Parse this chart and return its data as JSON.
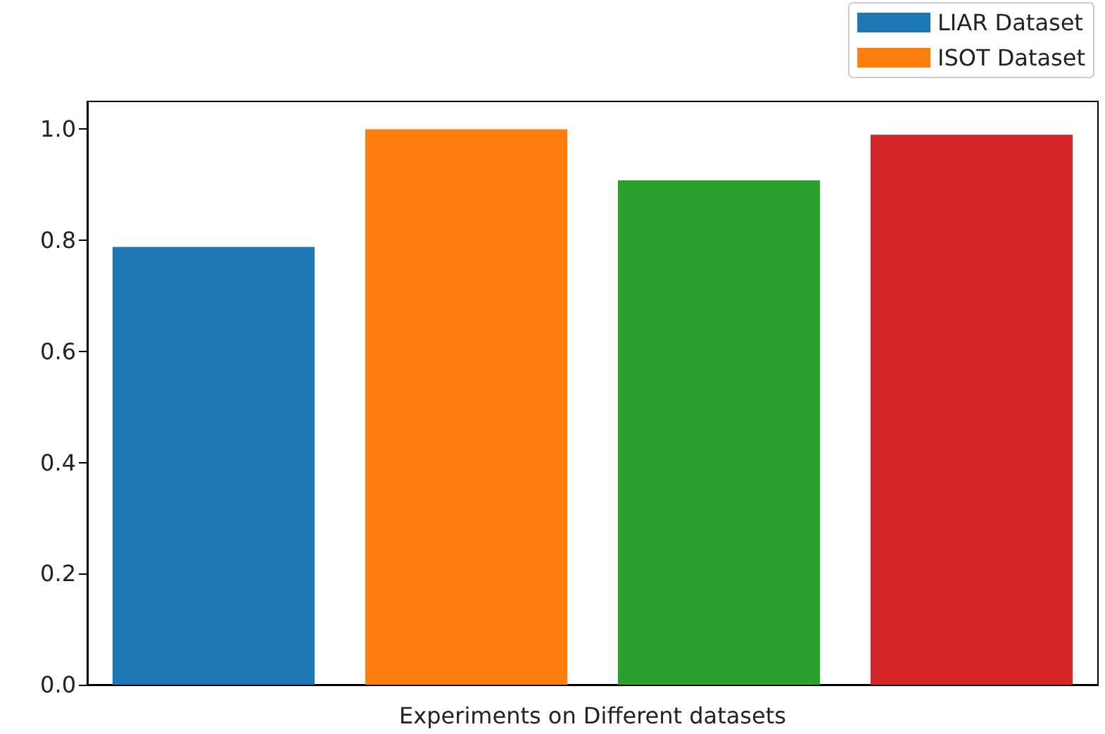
{
  "chart_data": {
    "type": "bar",
    "xlabel": "Experiments on Different datasets",
    "categories": [
      null,
      null,
      null,
      null
    ],
    "series": [
      {
        "name": "LIAR Dataset",
        "color": "#1f77b4",
        "values": [
          0.788,
          null,
          null,
          null
        ]
      },
      {
        "name": "ISOT Dataset",
        "color": "#ff7f0e",
        "values": [
          null,
          1.0,
          null,
          null
        ]
      },
      {
        "color": "#2ca02c",
        "values": [
          null,
          null,
          0.908,
          null
        ]
      },
      {
        "color": "#d62728",
        "values": [
          null,
          null,
          null,
          0.99
        ]
      }
    ],
    "ylim": [
      0,
      1.05
    ],
    "yticks": [
      {
        "value": 0,
        "label": "0.0"
      },
      {
        "value": 0.2,
        "label": "0.2"
      },
      {
        "value": 0.4,
        "label": "0.4"
      },
      {
        "value": 0.6,
        "label": "0.6"
      },
      {
        "value": 0.8,
        "label": "0.8"
      },
      {
        "value": 1,
        "label": "1.0"
      }
    ],
    "tick_labels": "y",
    "grid": false,
    "legend": "top right"
  }
}
